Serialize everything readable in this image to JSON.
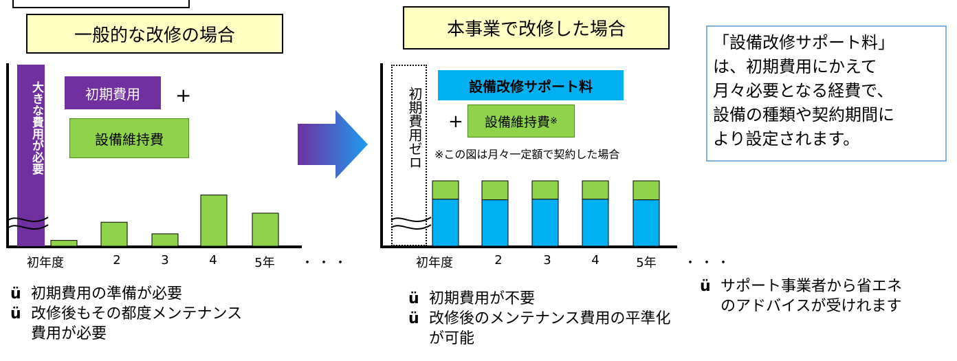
{
  "left": {
    "title": "一般的な改修の場合",
    "big_cost_label": "大きな費用が必要",
    "initial_cost": "初期費用",
    "plus": "+",
    "maintenance": "設備維持費"
  },
  "right": {
    "title": "本事業で改修した場合",
    "zero_label": "初期費用ゼロ",
    "support_fee": "設備改修サポート料",
    "plus": "+",
    "maintenance": "設備維持費",
    "maintenance_note_mark": "※",
    "note": "※この図は月々一定額で契約した場合"
  },
  "info_box": {
    "text": "「設備改修サポート料」\nは、初期費用にかえて\n月々必要となる経費で、\n設備の種類や契約期間に\nより設定されます。"
  },
  "chart_data": [
    {
      "type": "bar",
      "categories": [
        "初年度",
        "2",
        "3",
        "4",
        "5年"
      ],
      "series": [
        {
          "values": [
            0.07,
            0.29,
            0.15,
            0.62,
            0.4
          ]
        }
      ],
      "trailing": "・・・"
    },
    {
      "type": "bar",
      "categories": [
        "初年度",
        "2",
        "3",
        "4",
        "5年"
      ],
      "series": [
        {
          "values": [
            0.72,
            0.71,
            0.72,
            0.72,
            0.71
          ]
        },
        {
          "values": [
            0.28,
            0.29,
            0.28,
            0.28,
            0.29
          ]
        }
      ],
      "trailing": "・・・"
    }
  ],
  "bullets": {
    "mark": "ü",
    "left": [
      "初期費用の準備が必要",
      "改修後もその都度メンテナンス費用が必要"
    ],
    "middle": [
      "初期費用が不要",
      "改修後のメンテナンス費用の平準化が可能"
    ],
    "right": [
      "サポート事業者から省エネのアドバイスが受けれます"
    ]
  },
  "colors": {
    "purple": "#7030a0",
    "green": "#8fd34b",
    "blue": "#00b0f0",
    "title_fill": "#ffffc2",
    "info_border": "#7fb0e0"
  }
}
